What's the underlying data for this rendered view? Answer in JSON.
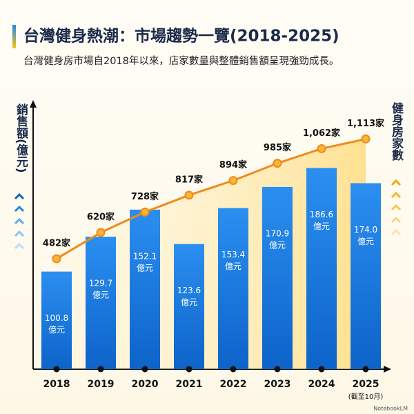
{
  "chart_data": {
    "type": "bar_line",
    "title": "台灣健身熱潮：市場趨勢一覽(2018-2025)",
    "subtitle": "台灣健身房市場自2018年以來，店家數量與整體銷售額呈現強勁成長。",
    "y_label": "銷售額(億元)",
    "y2_label": "健身房家數",
    "categories": [
      "2018",
      "2019",
      "2020",
      "2021",
      "2022",
      "2023",
      "2024",
      "2025"
    ],
    "category_note": "(截至10月)",
    "ylim": [
      20,
      240
    ],
    "y2lim": [
      -100,
      1300
    ],
    "series": [
      {
        "name": "銷售額",
        "type": "bar",
        "color": "#1e88e5",
        "values": [
          100.8,
          129.7,
          152.1,
          123.6,
          153.4,
          170.9,
          186.6,
          174.0
        ],
        "value_labels": [
          "100.8",
          "129.7",
          "152.1",
          "123.6",
          "153.4",
          "170.9",
          "186.6",
          "174.0"
        ],
        "value_label_unit": "億元"
      },
      {
        "name": "健身房家數",
        "type": "line",
        "axis": "y2",
        "color": "#f08a1c",
        "values": [
          482,
          620,
          728,
          817,
          894,
          985,
          1062,
          1113
        ],
        "value_labels": [
          "482家",
          "620家",
          "728家",
          "817家",
          "894家",
          "985家",
          "1,062家",
          "1,113家"
        ]
      }
    ],
    "footer": "NotebookLM"
  }
}
